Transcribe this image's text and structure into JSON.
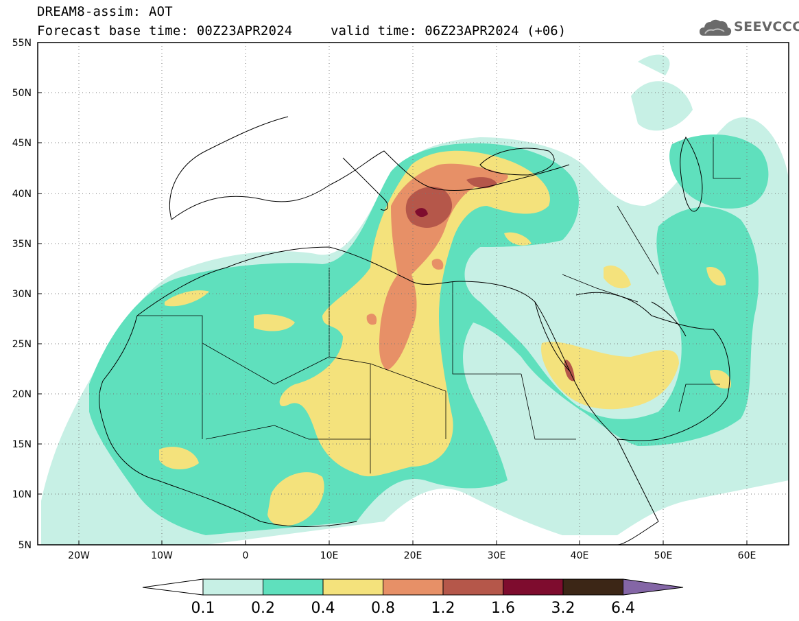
{
  "header": {
    "line1": "DREAM8-assim: AOT",
    "line2": "Forecast base time: 00Z23APR2024",
    "valid": "valid time: 06Z23APR2024 (+06)"
  },
  "logo": {
    "text": "SEEVCCC",
    "icon": "cloud-logo-icon"
  },
  "map": {
    "lat_labels": [
      "55N",
      "50N",
      "45N",
      "40N",
      "35N",
      "30N",
      "25N",
      "20N",
      "15N",
      "10N",
      "5N"
    ],
    "lon_labels": [
      "20W",
      "10W",
      "0",
      "10E",
      "20E",
      "30E",
      "40E",
      "50E",
      "60E"
    ]
  },
  "colorbar": {
    "labels": [
      "0.1",
      "0.2",
      "0.4",
      "0.8",
      "1.2",
      "1.6",
      "3.2",
      "6.4"
    ],
    "colors": [
      "#ffffff",
      "#c7f0e5",
      "#5fe0bd",
      "#f4e27c",
      "#e79067",
      "#b5574a",
      "#7e0c2e",
      "#3c2616",
      "#8466a6"
    ]
  },
  "palette": {
    "c1": "#c7f0e5",
    "c2": "#5fe0bd",
    "c3": "#f4e27c",
    "c4": "#e79067",
    "c5": "#b5574a",
    "c6": "#7e0c2e"
  }
}
